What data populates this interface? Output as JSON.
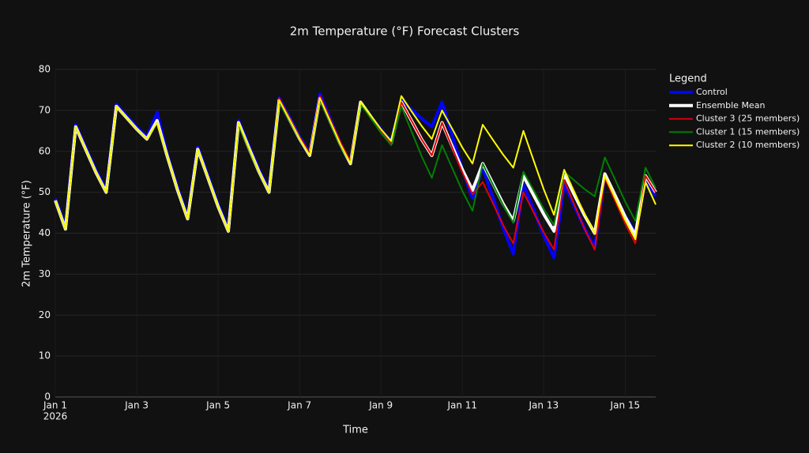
{
  "chart_data": {
    "type": "line",
    "title": "2m Temperature (°F) Forecast Clusters",
    "x_label": "Time",
    "y_label": "2m Temperature (°F)",
    "legend_title": "Legend",
    "legend_position": "right",
    "grid": true,
    "x": [
      "2026-01-01T00:00",
      "2026-01-01T06:00",
      "2026-01-01T12:00",
      "2026-01-01T18:00",
      "2026-01-02T00:00",
      "2026-01-02T06:00",
      "2026-01-02T12:00",
      "2026-01-02T18:00",
      "2026-01-03T00:00",
      "2026-01-03T06:00",
      "2026-01-03T12:00",
      "2026-01-03T18:00",
      "2026-01-04T00:00",
      "2026-01-04T06:00",
      "2026-01-04T12:00",
      "2026-01-04T18:00",
      "2026-01-05T00:00",
      "2026-01-05T06:00",
      "2026-01-05T12:00",
      "2026-01-05T18:00",
      "2026-01-06T00:00",
      "2026-01-06T06:00",
      "2026-01-06T12:00",
      "2026-01-06T18:00",
      "2026-01-07T00:00",
      "2026-01-07T06:00",
      "2026-01-07T12:00",
      "2026-01-07T18:00",
      "2026-01-08T00:00",
      "2026-01-08T06:00",
      "2026-01-08T12:00",
      "2026-01-08T18:00",
      "2026-01-09T00:00",
      "2026-01-09T06:00",
      "2026-01-09T12:00",
      "2026-01-09T18:00",
      "2026-01-10T00:00",
      "2026-01-10T06:00",
      "2026-01-10T12:00",
      "2026-01-10T18:00",
      "2026-01-11T00:00",
      "2026-01-11T06:00",
      "2026-01-11T12:00",
      "2026-01-11T18:00",
      "2026-01-12T00:00",
      "2026-01-12T06:00",
      "2026-01-12T12:00",
      "2026-01-12T18:00",
      "2026-01-13T00:00",
      "2026-01-13T06:00",
      "2026-01-13T12:00",
      "2026-01-13T18:00",
      "2026-01-14T00:00",
      "2026-01-14T06:00",
      "2026-01-14T12:00",
      "2026-01-14T18:00",
      "2026-01-15T00:00",
      "2026-01-15T06:00",
      "2026-01-15T12:00",
      "2026-01-15T18:00"
    ],
    "xlim": [
      "2026-01-01T00:00",
      "2026-01-15T18:00"
    ],
    "xticks": [
      {
        "value": "2026-01-01T00:00",
        "label": "Jan 1"
      },
      {
        "value": "2026-01-03T00:00",
        "label": "Jan 3"
      },
      {
        "value": "2026-01-05T00:00",
        "label": "Jan 5"
      },
      {
        "value": "2026-01-07T00:00",
        "label": "Jan 7"
      },
      {
        "value": "2026-01-09T00:00",
        "label": "Jan 9"
      },
      {
        "value": "2026-01-11T00:00",
        "label": "Jan 11"
      },
      {
        "value": "2026-01-13T00:00",
        "label": "Jan 13"
      },
      {
        "value": "2026-01-15T00:00",
        "label": "Jan 15"
      }
    ],
    "x_year_label": "2026",
    "ylim": [
      0,
      80
    ],
    "yticks": [
      0,
      10,
      20,
      30,
      40,
      50,
      60,
      70,
      80
    ],
    "series": [
      {
        "name": "Control",
        "color": "#0000ff",
        "width": 4,
        "values": [
          48.5,
          41.5,
          66.5,
          60.9,
          55.3,
          50.5,
          71.5,
          68.7,
          65.9,
          63.5,
          69.5,
          59.3,
          51.1,
          44,
          61,
          54,
          47,
          41,
          67.5,
          61.5,
          55.6,
          50.5,
          73,
          68.3,
          63.6,
          59.5,
          74,
          68,
          62,
          57,
          72,
          68.5,
          65.4,
          62.5,
          72.5,
          70.2,
          68,
          66,
          72,
          63.8,
          55.6,
          48.5,
          56,
          48.7,
          41.3,
          35,
          52,
          45.7,
          39.4,
          34,
          52,
          46.6,
          41.2,
          36.5,
          54,
          49.1,
          44.2,
          40,
          53,
          49
        ]
      },
      {
        "name": "Ensemble Mean",
        "color": "#ffffff",
        "width": 4,
        "values": [
          48,
          41,
          66,
          60.4,
          54.8,
          50,
          71,
          68.2,
          65.4,
          63,
          67.5,
          58.8,
          50.6,
          43.5,
          60.5,
          53.5,
          46.5,
          40.5,
          67,
          61,
          55.1,
          50,
          72.5,
          67.8,
          63.1,
          59,
          73,
          67.4,
          61.8,
          57,
          72,
          68.5,
          65,
          62,
          72,
          67.5,
          62.9,
          59,
          67,
          61.2,
          55.5,
          50.5,
          57,
          52.1,
          47.2,
          43,
          54,
          49.3,
          44.6,
          40.5,
          54.5,
          49.4,
          44.4,
          40,
          54.5,
          49.3,
          44,
          39.5,
          54,
          50
        ]
      },
      {
        "name": "Cluster 3 (25 members)",
        "color": "#e00000",
        "width": 2,
        "values": [
          48,
          41,
          66,
          60.4,
          54.8,
          50,
          71,
          68.2,
          65.4,
          63,
          67,
          58.8,
          50.6,
          43.5,
          60.5,
          53.5,
          46.5,
          40.5,
          67,
          61,
          55.1,
          50,
          73,
          68.1,
          63.5,
          59.5,
          73.5,
          67.9,
          62.3,
          57.5,
          72,
          68.5,
          65,
          62,
          72,
          67.5,
          62.9,
          59,
          67,
          60.9,
          54.8,
          49.5,
          52.5,
          47.3,
          42,
          37.5,
          50,
          45.1,
          40.2,
          36,
          53,
          47,
          41.1,
          36,
          53.5,
          47.9,
          42.3,
          37.5,
          54,
          50
        ]
      },
      {
        "name": "Cluster 1 (15 members)",
        "color": "#008000",
        "width": 2,
        "values": [
          48,
          41,
          66,
          60.4,
          54.8,
          50,
          71,
          68.2,
          65.4,
          63,
          67,
          58.8,
          50.6,
          43.5,
          60.5,
          53.5,
          46.5,
          40.5,
          66.5,
          60.7,
          55,
          50,
          72,
          67.5,
          63,
          59,
          72.5,
          67,
          61.5,
          57,
          71.5,
          68.2,
          64.5,
          61.5,
          71,
          64.9,
          58.8,
          53.5,
          61.5,
          55.9,
          50.3,
          45.5,
          57,
          51.9,
          46.9,
          42.5,
          55,
          50.5,
          45.9,
          42,
          55,
          52.9,
          50.8,
          49,
          58.5,
          53.1,
          47.7,
          43,
          56,
          51
        ]
      },
      {
        "name": "Cluster 2 (10 members)",
        "color": "#ffff00",
        "width": 2,
        "values": [
          48,
          41,
          66,
          60.4,
          54.8,
          50,
          71,
          68.2,
          65.4,
          63,
          67,
          58.8,
          50.6,
          43.5,
          60.5,
          53.5,
          46.5,
          40.5,
          67,
          61,
          55.1,
          50,
          72.5,
          67.8,
          63.1,
          59,
          73,
          67.4,
          61.8,
          57,
          72,
          68.7,
          65.4,
          62.5,
          73.5,
          69.8,
          66.2,
          63,
          70,
          65.5,
          60.9,
          57,
          66.5,
          62.8,
          59.2,
          56,
          65,
          57.8,
          50.7,
          44.5,
          55.5,
          50.1,
          44.7,
          40,
          54,
          48.6,
          43.2,
          38.5,
          52.5,
          47
        ]
      }
    ]
  }
}
